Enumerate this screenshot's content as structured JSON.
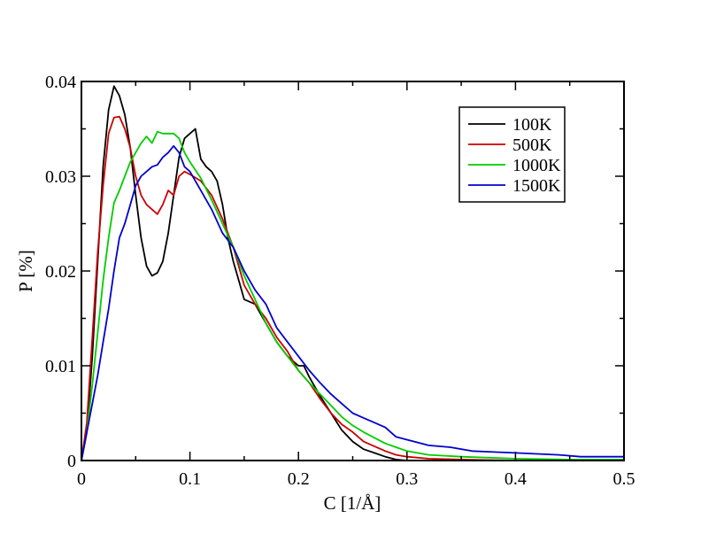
{
  "chart_data": {
    "type": "line",
    "title": "",
    "xlabel": "C [1/Å]",
    "ylabel": "P [%]",
    "xlim": [
      0,
      0.5
    ],
    "ylim": [
      0,
      0.04
    ],
    "x_ticks": [
      0,
      0.1,
      0.2,
      0.3,
      0.4,
      0.5
    ],
    "x_tick_labels": [
      "0",
      "0.1",
      "0.2",
      "0.3",
      "0.4",
      "0.5"
    ],
    "y_ticks": [
      0,
      0.01,
      0.02,
      0.03,
      0.04
    ],
    "y_tick_labels": [
      "0",
      "0.01",
      "0.02",
      "0.03",
      "0.04"
    ],
    "grid": false,
    "legend_position": "top-right",
    "series": [
      {
        "name": "100K",
        "color": "#000000",
        "points": [
          [
            0,
            0
          ],
          [
            0.005,
            0.003
          ],
          [
            0.01,
            0.011
          ],
          [
            0.015,
            0.021
          ],
          [
            0.02,
            0.031
          ],
          [
            0.025,
            0.037
          ],
          [
            0.03,
            0.0395
          ],
          [
            0.035,
            0.0385
          ],
          [
            0.04,
            0.0365
          ],
          [
            0.045,
            0.033
          ],
          [
            0.05,
            0.028
          ],
          [
            0.055,
            0.0235
          ],
          [
            0.06,
            0.0205
          ],
          [
            0.065,
            0.0195
          ],
          [
            0.07,
            0.0198
          ],
          [
            0.075,
            0.021
          ],
          [
            0.08,
            0.024
          ],
          [
            0.085,
            0.028
          ],
          [
            0.09,
            0.032
          ],
          [
            0.095,
            0.034
          ],
          [
            0.1,
            0.0345
          ],
          [
            0.105,
            0.035
          ],
          [
            0.11,
            0.0318
          ],
          [
            0.115,
            0.031
          ],
          [
            0.12,
            0.0305
          ],
          [
            0.125,
            0.0295
          ],
          [
            0.13,
            0.027
          ],
          [
            0.135,
            0.0235
          ],
          [
            0.14,
            0.021
          ],
          [
            0.145,
            0.019
          ],
          [
            0.15,
            0.017
          ],
          [
            0.16,
            0.0165
          ],
          [
            0.17,
            0.0145
          ],
          [
            0.18,
            0.0125
          ],
          [
            0.19,
            0.011
          ],
          [
            0.2,
            0.01
          ],
          [
            0.205,
            0.01
          ],
          [
            0.21,
            0.0088
          ],
          [
            0.22,
            0.0068
          ],
          [
            0.23,
            0.005
          ],
          [
            0.24,
            0.0032
          ],
          [
            0.25,
            0.002
          ],
          [
            0.26,
            0.0012
          ],
          [
            0.27,
            0.0008
          ],
          [
            0.28,
            0.0004
          ],
          [
            0.29,
            0.0001
          ],
          [
            0.3,
            0
          ],
          [
            0.35,
            0
          ],
          [
            0.4,
            0
          ],
          [
            0.45,
            0
          ],
          [
            0.5,
            0
          ]
        ]
      },
      {
        "name": "500K",
        "color": "#cc0000",
        "points": [
          [
            0,
            0
          ],
          [
            0.005,
            0.004
          ],
          [
            0.01,
            0.013
          ],
          [
            0.015,
            0.022
          ],
          [
            0.02,
            0.029
          ],
          [
            0.025,
            0.0345
          ],
          [
            0.03,
            0.0362
          ],
          [
            0.035,
            0.0363
          ],
          [
            0.04,
            0.035
          ],
          [
            0.045,
            0.033
          ],
          [
            0.05,
            0.03
          ],
          [
            0.055,
            0.028
          ],
          [
            0.06,
            0.027
          ],
          [
            0.065,
            0.0265
          ],
          [
            0.07,
            0.026
          ],
          [
            0.075,
            0.027
          ],
          [
            0.08,
            0.0285
          ],
          [
            0.085,
            0.028
          ],
          [
            0.09,
            0.03
          ],
          [
            0.095,
            0.0305
          ],
          [
            0.1,
            0.0302
          ],
          [
            0.11,
            0.0295
          ],
          [
            0.12,
            0.028
          ],
          [
            0.13,
            0.0255
          ],
          [
            0.14,
            0.0225
          ],
          [
            0.15,
            0.0185
          ],
          [
            0.16,
            0.0165
          ],
          [
            0.17,
            0.015
          ],
          [
            0.18,
            0.013
          ],
          [
            0.19,
            0.0115
          ],
          [
            0.2,
            0.0095
          ],
          [
            0.21,
            0.0082
          ],
          [
            0.22,
            0.0065
          ],
          [
            0.23,
            0.005
          ],
          [
            0.24,
            0.0038
          ],
          [
            0.25,
            0.003
          ],
          [
            0.26,
            0.002
          ],
          [
            0.27,
            0.0015
          ],
          [
            0.28,
            0.001
          ],
          [
            0.29,
            0.0006
          ],
          [
            0.3,
            0.0004
          ],
          [
            0.32,
            0.0002
          ],
          [
            0.35,
            0.0001
          ],
          [
            0.4,
            0
          ],
          [
            0.45,
            0
          ],
          [
            0.5,
            0
          ]
        ]
      },
      {
        "name": "1000K",
        "color": "#00cc00",
        "points": [
          [
            0,
            0
          ],
          [
            0.005,
            0.003
          ],
          [
            0.01,
            0.008
          ],
          [
            0.015,
            0.0135
          ],
          [
            0.02,
            0.019
          ],
          [
            0.025,
            0.0235
          ],
          [
            0.03,
            0.0272
          ],
          [
            0.035,
            0.0285
          ],
          [
            0.04,
            0.03
          ],
          [
            0.045,
            0.0315
          ],
          [
            0.05,
            0.0325
          ],
          [
            0.055,
            0.0335
          ],
          [
            0.06,
            0.0342
          ],
          [
            0.065,
            0.0335
          ],
          [
            0.07,
            0.0347
          ],
          [
            0.075,
            0.0345
          ],
          [
            0.08,
            0.0345
          ],
          [
            0.085,
            0.0345
          ],
          [
            0.09,
            0.034
          ],
          [
            0.095,
            0.0325
          ],
          [
            0.1,
            0.0315
          ],
          [
            0.11,
            0.0298
          ],
          [
            0.12,
            0.0275
          ],
          [
            0.13,
            0.025
          ],
          [
            0.14,
            0.0225
          ],
          [
            0.15,
            0.0195
          ],
          [
            0.16,
            0.017
          ],
          [
            0.17,
            0.0145
          ],
          [
            0.18,
            0.0125
          ],
          [
            0.19,
            0.011
          ],
          [
            0.2,
            0.0095
          ],
          [
            0.21,
            0.0082
          ],
          [
            0.22,
            0.007
          ],
          [
            0.23,
            0.0058
          ],
          [
            0.24,
            0.0046
          ],
          [
            0.25,
            0.0037
          ],
          [
            0.26,
            0.003
          ],
          [
            0.27,
            0.0024
          ],
          [
            0.28,
            0.0018
          ],
          [
            0.29,
            0.0014
          ],
          [
            0.3,
            0.001
          ],
          [
            0.32,
            0.0006
          ],
          [
            0.35,
            0.0004
          ],
          [
            0.4,
            0.0002
          ],
          [
            0.45,
            0.0001
          ],
          [
            0.5,
            0.0001
          ]
        ]
      },
      {
        "name": "1500K",
        "color": "#0000cc",
        "points": [
          [
            0,
            0
          ],
          [
            0.005,
            0.003
          ],
          [
            0.01,
            0.006
          ],
          [
            0.015,
            0.009
          ],
          [
            0.02,
            0.0125
          ],
          [
            0.025,
            0.016
          ],
          [
            0.03,
            0.02
          ],
          [
            0.035,
            0.0235
          ],
          [
            0.04,
            0.025
          ],
          [
            0.045,
            0.027
          ],
          [
            0.05,
            0.029
          ],
          [
            0.055,
            0.03
          ],
          [
            0.06,
            0.0305
          ],
          [
            0.065,
            0.031
          ],
          [
            0.07,
            0.0312
          ],
          [
            0.075,
            0.032
          ],
          [
            0.08,
            0.0325
          ],
          [
            0.085,
            0.0332
          ],
          [
            0.09,
            0.0325
          ],
          [
            0.095,
            0.031
          ],
          [
            0.1,
            0.0305
          ],
          [
            0.11,
            0.0285
          ],
          [
            0.12,
            0.0265
          ],
          [
            0.13,
            0.024
          ],
          [
            0.14,
            0.0225
          ],
          [
            0.15,
            0.02
          ],
          [
            0.16,
            0.018
          ],
          [
            0.17,
            0.0165
          ],
          [
            0.18,
            0.014
          ],
          [
            0.19,
            0.0125
          ],
          [
            0.2,
            0.011
          ],
          [
            0.21,
            0.0095
          ],
          [
            0.22,
            0.0082
          ],
          [
            0.23,
            0.007
          ],
          [
            0.24,
            0.006
          ],
          [
            0.25,
            0.005
          ],
          [
            0.26,
            0.0045
          ],
          [
            0.27,
            0.004
          ],
          [
            0.28,
            0.0035
          ],
          [
            0.29,
            0.0025
          ],
          [
            0.3,
            0.0022
          ],
          [
            0.32,
            0.0016
          ],
          [
            0.34,
            0.0014
          ],
          [
            0.36,
            0.001
          ],
          [
            0.38,
            0.0009
          ],
          [
            0.4,
            0.0008
          ],
          [
            0.42,
            0.0007
          ],
          [
            0.44,
            0.0006
          ],
          [
            0.46,
            0.0004
          ],
          [
            0.48,
            0.0004
          ],
          [
            0.5,
            0.0004
          ]
        ]
      }
    ]
  }
}
